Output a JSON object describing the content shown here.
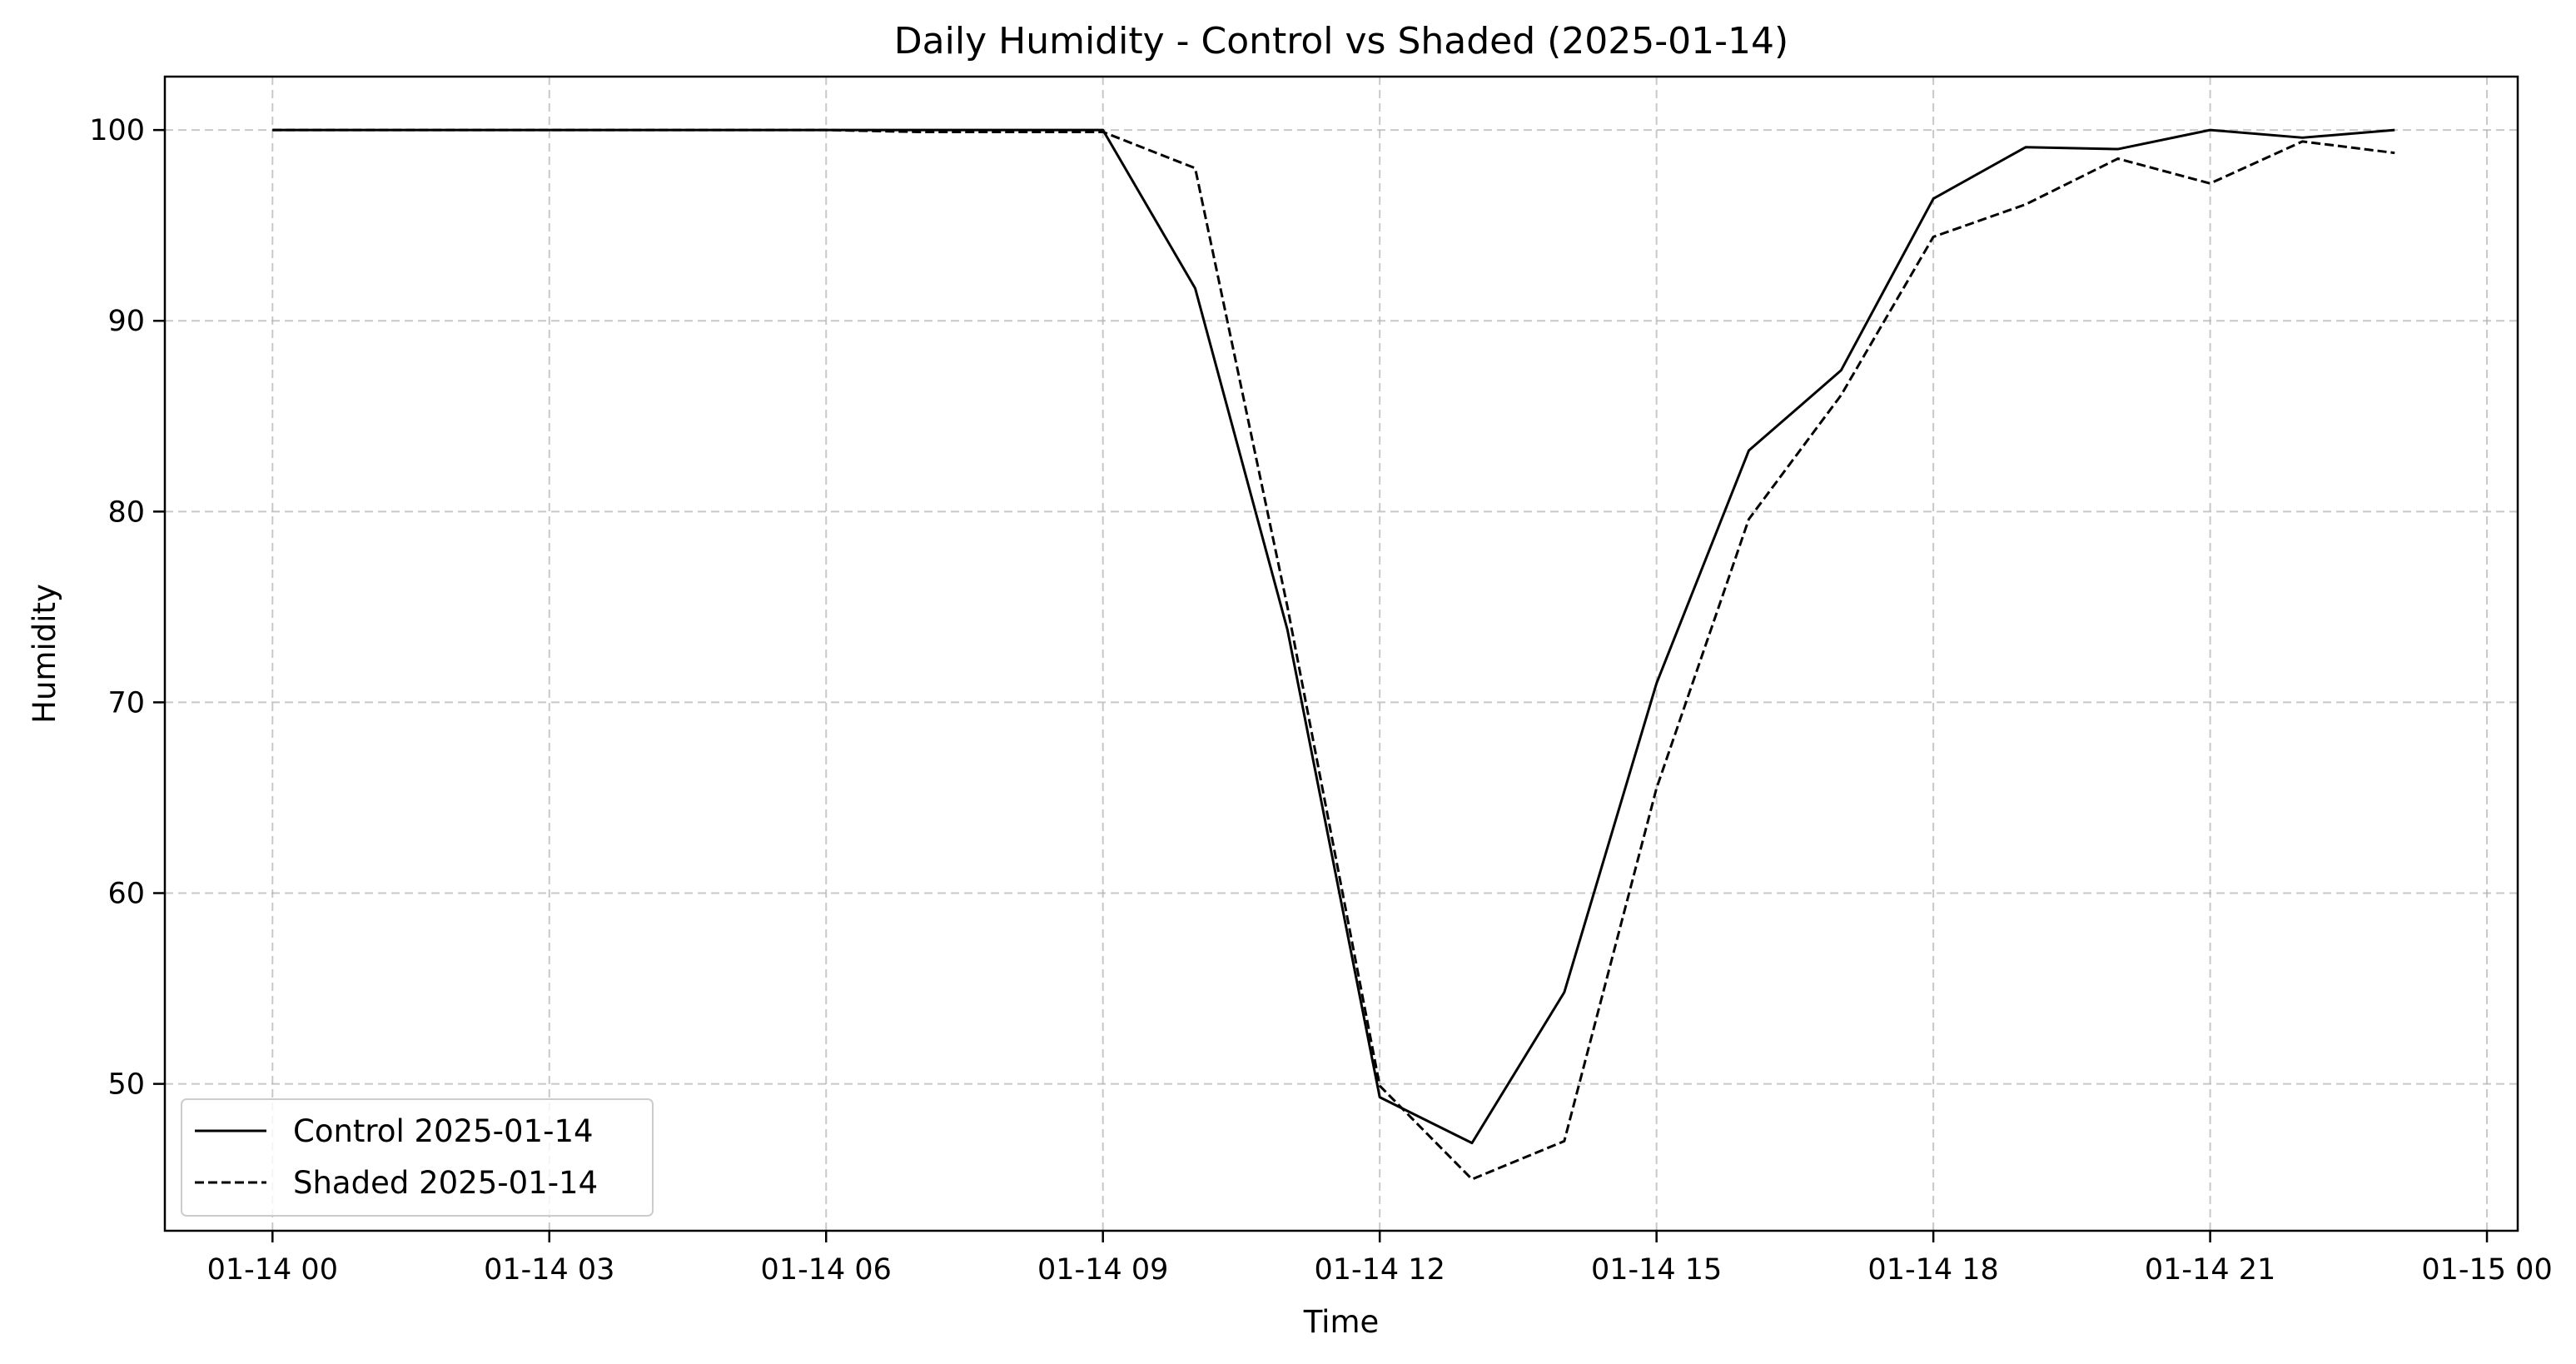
{
  "chart_data": {
    "type": "line",
    "title": "Daily Humidity - Control vs Shaded (2025-01-14)",
    "xlabel": "Time",
    "ylabel": "Humidity",
    "x_unit": "datetime",
    "xlim": [
      "2025-01-13 22:50",
      "2025-01-15 00:20"
    ],
    "ylim": [
      42.3,
      102.8
    ],
    "x_ticks": [
      "2025-01-14 00:00",
      "2025-01-14 03:00",
      "2025-01-14 06:00",
      "2025-01-14 09:00",
      "2025-01-14 12:00",
      "2025-01-14 15:00",
      "2025-01-14 18:00",
      "2025-01-14 21:00",
      "2025-01-15 00:00"
    ],
    "x_tick_labels": [
      "01-14 00",
      "01-14 03",
      "01-14 06",
      "01-14 09",
      "01-14 12",
      "01-14 15",
      "01-14 18",
      "01-14 21",
      "01-15 00"
    ],
    "y_ticks": [
      50,
      60,
      70,
      80,
      90,
      100
    ],
    "y_tick_labels": [
      "50",
      "60",
      "70",
      "80",
      "90",
      "100"
    ],
    "grid": true,
    "legend_position": "lower-left",
    "x": [
      "2025-01-14 00:00",
      "2025-01-14 01:00",
      "2025-01-14 02:00",
      "2025-01-14 03:00",
      "2025-01-14 04:00",
      "2025-01-14 05:00",
      "2025-01-14 06:00",
      "2025-01-14 07:00",
      "2025-01-14 08:00",
      "2025-01-14 09:00",
      "2025-01-14 10:00",
      "2025-01-14 11:00",
      "2025-01-14 12:00",
      "2025-01-14 13:00",
      "2025-01-14 14:00",
      "2025-01-14 15:00",
      "2025-01-14 16:00",
      "2025-01-14 17:00",
      "2025-01-14 18:00",
      "2025-01-14 19:00",
      "2025-01-14 20:00",
      "2025-01-14 21:00",
      "2025-01-14 22:00",
      "2025-01-14 23:00"
    ],
    "series": [
      {
        "name": "Control 2025-01-14",
        "line_style": "solid",
        "color": "#000000",
        "values": [
          100,
          100,
          100,
          100,
          100,
          100,
          100,
          100,
          100,
          100,
          91.7,
          73.8,
          49.3,
          46.9,
          54.8,
          71.0,
          83.2,
          87.4,
          96.4,
          99.1,
          99.0,
          100,
          99.6,
          100
        ]
      },
      {
        "name": "Shaded 2025-01-14",
        "line_style": "dashed",
        "color": "#000000",
        "values": [
          100,
          100,
          100,
          100,
          100,
          100,
          100,
          99.9,
          99.9,
          99.9,
          98.0,
          75.0,
          49.9,
          45.0,
          47.0,
          65.5,
          79.6,
          86.1,
          94.4,
          96.1,
          98.5,
          97.2,
          99.4,
          98.8
        ]
      }
    ]
  }
}
